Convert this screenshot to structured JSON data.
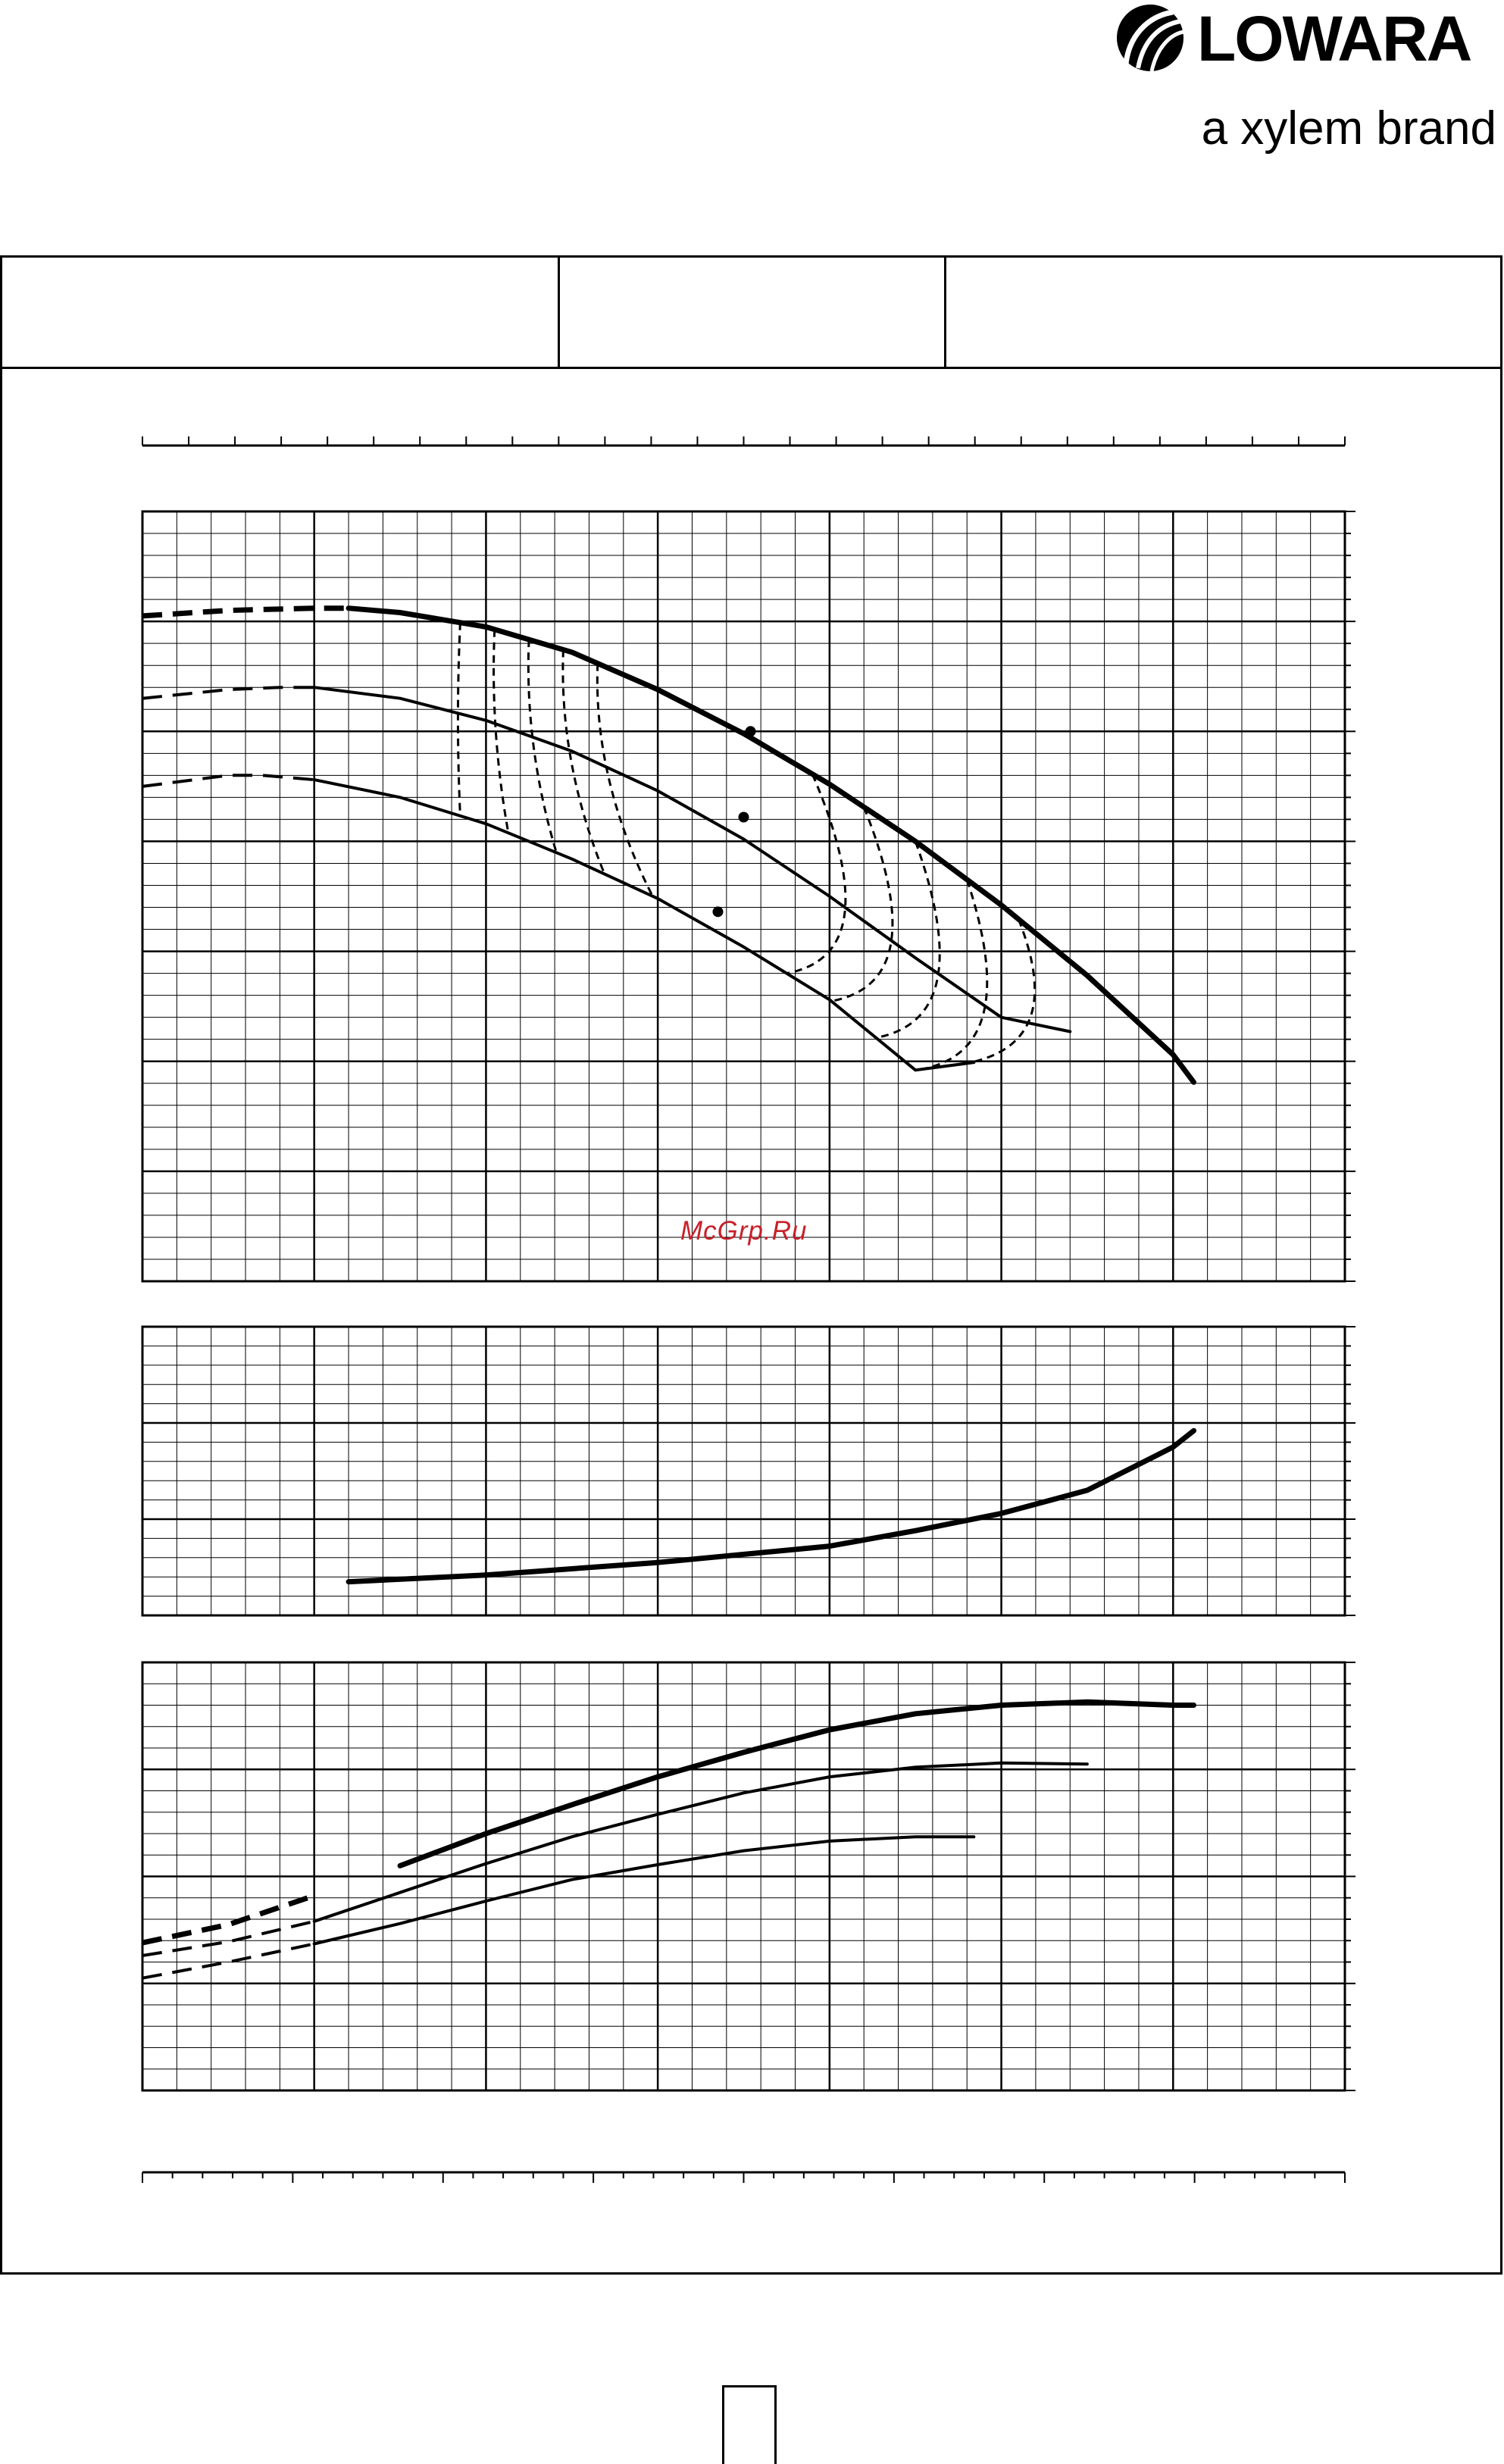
{
  "brand": {
    "name": "LOWARA",
    "tagline": "a xylem brand"
  },
  "watermark": "McGrp.Ru",
  "colors": {
    "ink": "#000000",
    "watermark": "#c8202a",
    "background": "#ffffff"
  },
  "chart_data": [
    {
      "type": "line",
      "panel": "head",
      "xlim": [
        0,
        7
      ],
      "ylim": [
        0,
        7
      ],
      "grid": true,
      "series": [
        {
          "line": "heavy",
          "dashed_x": [
            0,
            1.2
          ],
          "x": [
            0,
            0.5,
            1.0,
            1.2,
            1.5,
            2.0,
            2.5,
            3.0,
            3.5,
            4.0,
            4.5,
            5.0,
            5.5,
            6.0,
            6.12
          ],
          "y": [
            6.05,
            6.1,
            6.12,
            6.12,
            6.08,
            5.95,
            5.72,
            5.38,
            4.98,
            4.52,
            4.0,
            3.42,
            2.78,
            2.06,
            1.81
          ]
        },
        {
          "line": "medium",
          "dashed_x": [
            0,
            1.0
          ],
          "x": [
            0,
            0.5,
            0.8,
            1.0,
            1.5,
            2.0,
            2.5,
            3.0,
            3.5,
            4.0,
            4.5,
            5.0,
            5.4
          ],
          "y": [
            5.3,
            5.38,
            5.4,
            5.4,
            5.3,
            5.1,
            4.82,
            4.46,
            4.02,
            3.5,
            2.94,
            2.4,
            2.27
          ]
        },
        {
          "line": "medium",
          "dashed_x": [
            0,
            1.0
          ],
          "x": [
            0,
            0.5,
            0.7,
            1.0,
            1.5,
            2.0,
            2.5,
            3.0,
            3.5,
            4.0,
            4.5,
            4.84
          ],
          "y": [
            4.5,
            4.6,
            4.6,
            4.56,
            4.4,
            4.16,
            3.84,
            3.48,
            3.04,
            2.56,
            1.92,
            1.99
          ]
        }
      ],
      "markers": [
        {
          "x": 3.54,
          "y": 5.0
        },
        {
          "x": 3.5,
          "y": 4.22
        },
        {
          "x": 3.35,
          "y": 3.36
        }
      ],
      "iso_curves": 10
    },
    {
      "type": "line",
      "panel": "npsh",
      "xlim": [
        0,
        7
      ],
      "ylim": [
        0,
        3
      ],
      "grid": true,
      "series": [
        {
          "line": "heavy",
          "x": [
            1.2,
            2.0,
            3.0,
            4.0,
            4.5,
            5.0,
            5.5,
            6.0,
            6.12
          ],
          "y": [
            0.35,
            0.42,
            0.55,
            0.72,
            0.88,
            1.06,
            1.3,
            1.75,
            1.92
          ]
        }
      ]
    },
    {
      "type": "line",
      "panel": "power",
      "xlim": [
        0,
        7
      ],
      "ylim": [
        0,
        4
      ],
      "grid": true,
      "series": [
        {
          "line": "heavy",
          "dashed_x": [
            0,
            1.1
          ],
          "x": [
            0,
            0.5,
            1.0,
            1.5,
            2.0,
            2.5,
            3.0,
            3.5,
            4.0,
            4.5,
            5.0,
            5.5,
            6.0,
            6.12
          ],
          "y": [
            1.38,
            1.55,
            1.82,
            2.1,
            2.4,
            2.67,
            2.93,
            3.16,
            3.37,
            3.52,
            3.6,
            3.63,
            3.6,
            3.6
          ]
        },
        {
          "line": "medium",
          "dashed_x": [
            0,
            1.0
          ],
          "x": [
            0,
            0.5,
            1.0,
            1.5,
            2.0,
            2.5,
            3.0,
            3.5,
            4.0,
            4.5,
            5.0,
            5.5
          ],
          "y": [
            1.26,
            1.39,
            1.58,
            1.85,
            2.12,
            2.37,
            2.58,
            2.78,
            2.93,
            3.02,
            3.06,
            3.05
          ]
        },
        {
          "line": "medium",
          "dashed_x": [
            0,
            1.0
          ],
          "x": [
            0,
            0.5,
            1.0,
            1.5,
            2.0,
            2.5,
            3.0,
            3.5,
            4.0,
            4.5,
            4.84
          ],
          "y": [
            1.05,
            1.2,
            1.37,
            1.56,
            1.77,
            1.97,
            2.11,
            2.24,
            2.33,
            2.37,
            2.37
          ]
        }
      ]
    }
  ]
}
